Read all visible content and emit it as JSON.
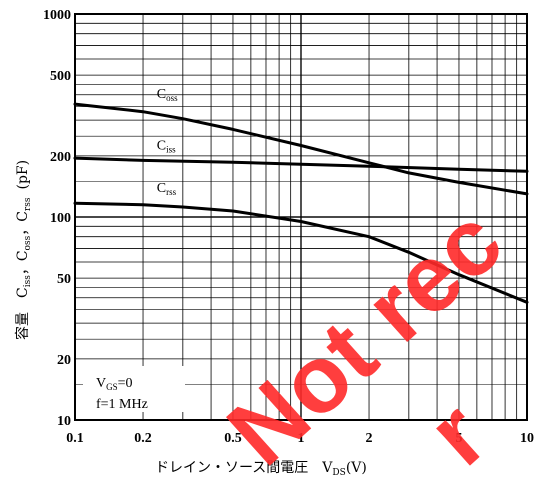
{
  "chart_data": {
    "type": "line",
    "x_scale": "log",
    "y_scale": "log",
    "xlim": [
      0.1,
      10
    ],
    "ylim": [
      10,
      1000
    ],
    "grid": true,
    "xticks": [
      "0.1",
      "0.2",
      "0.5",
      "1",
      "2",
      "5",
      "10"
    ],
    "yticks": [
      "1000",
      "500",
      "200",
      "100",
      "50",
      "20",
      "10"
    ],
    "ylabel": "容量　C",
    "ylabel_subs": [
      "iss",
      "oss",
      "rss"
    ],
    "ylabel_tail": "(pF)",
    "xlabel": "ドレイン・ソース間電圧　V",
    "xlabel_sub": "DS",
    "xlabel_tail": "(V)",
    "annotation": {
      "line1": "V",
      "line1_sub": "GS",
      "line1_tail": "=0",
      "line2": "f=1 MHz"
    },
    "series": [
      {
        "name": "C",
        "sub": "oss",
        "x": [
          0.1,
          0.2,
          0.3,
          0.5,
          1,
          2,
          3,
          5,
          10
        ],
        "y": [
          360,
          330,
          305,
          270,
          225,
          185,
          165,
          148,
          130
        ]
      },
      {
        "name": "C",
        "sub": "iss",
        "x": [
          0.1,
          0.2,
          0.5,
          1,
          2,
          5,
          10
        ],
        "y": [
          195,
          190,
          186,
          182,
          178,
          172,
          168
        ]
      },
      {
        "name": "C",
        "sub": "rss",
        "x": [
          0.1,
          0.2,
          0.3,
          0.5,
          1,
          2,
          3,
          5,
          10
        ],
        "y": [
          117,
          115,
          112,
          107,
          95,
          80,
          67,
          52,
          38
        ]
      }
    ],
    "watermark": "Not rec... r"
  }
}
